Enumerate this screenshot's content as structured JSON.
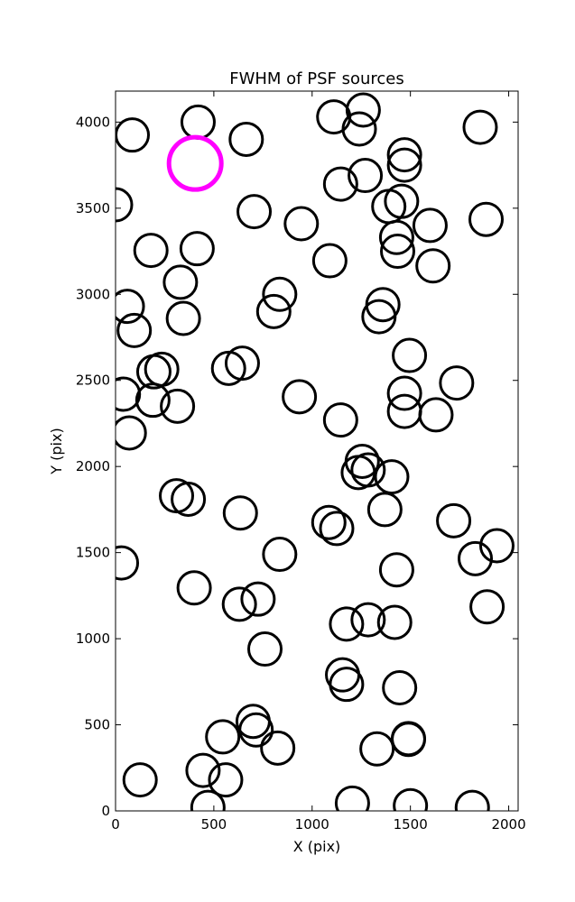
{
  "chart_data": {
    "type": "scatter",
    "title": "FWHM of PSF sources",
    "xlabel": "X (pix)",
    "ylabel": "Y (pix)",
    "xlim": [
      0,
      2048
    ],
    "ylim": [
      0,
      4180
    ],
    "xticks": [
      0,
      500,
      1000,
      1500,
      2000
    ],
    "yticks": [
      0,
      500,
      1000,
      1500,
      2000,
      2500,
      3000,
      3500,
      4000
    ],
    "marker": "open-circle",
    "grid": false,
    "legend": "none",
    "colors": {
      "source": "#000000",
      "highlight": "#ff00ff"
    },
    "highlight_point": {
      "x": 405,
      "y": 3760
    },
    "points": [
      {
        "x": 85,
        "y": 3925
      },
      {
        "x": 420,
        "y": 4000
      },
      {
        "x": 665,
        "y": 3900
      },
      {
        "x": 1110,
        "y": 4030
      },
      {
        "x": 1240,
        "y": 3960
      },
      {
        "x": 1260,
        "y": 4070
      },
      {
        "x": 1855,
        "y": 3970
      },
      {
        "x": 1470,
        "y": 3810
      },
      {
        "x": 1470,
        "y": 3750
      },
      {
        "x": 1270,
        "y": 3690
      },
      {
        "x": 1145,
        "y": 3640
      },
      {
        "x": 0,
        "y": 3520
      },
      {
        "x": 705,
        "y": 3480
      },
      {
        "x": 945,
        "y": 3410
      },
      {
        "x": 1390,
        "y": 3510
      },
      {
        "x": 1455,
        "y": 3540
      },
      {
        "x": 1600,
        "y": 3400
      },
      {
        "x": 1885,
        "y": 3435
      },
      {
        "x": 180,
        "y": 3255
      },
      {
        "x": 415,
        "y": 3265
      },
      {
        "x": 1430,
        "y": 3330
      },
      {
        "x": 1435,
        "y": 3250
      },
      {
        "x": 1090,
        "y": 3195
      },
      {
        "x": 1615,
        "y": 3165
      },
      {
        "x": 330,
        "y": 3070
      },
      {
        "x": 835,
        "y": 3000
      },
      {
        "x": 805,
        "y": 2900
      },
      {
        "x": 60,
        "y": 2930
      },
      {
        "x": 95,
        "y": 2790
      },
      {
        "x": 345,
        "y": 2860
      },
      {
        "x": 1360,
        "y": 2940
      },
      {
        "x": 1340,
        "y": 2870
      },
      {
        "x": 1495,
        "y": 2645
      },
      {
        "x": 645,
        "y": 2600
      },
      {
        "x": 575,
        "y": 2570
      },
      {
        "x": 235,
        "y": 2565
      },
      {
        "x": 195,
        "y": 2550
      },
      {
        "x": 40,
        "y": 2420
      },
      {
        "x": 190,
        "y": 2385
      },
      {
        "x": 315,
        "y": 2350
      },
      {
        "x": 935,
        "y": 2405
      },
      {
        "x": 1470,
        "y": 2425
      },
      {
        "x": 1735,
        "y": 2485
      },
      {
        "x": 1470,
        "y": 2320
      },
      {
        "x": 1630,
        "y": 2300
      },
      {
        "x": 1145,
        "y": 2270
      },
      {
        "x": 70,
        "y": 2195
      },
      {
        "x": 1255,
        "y": 2030
      },
      {
        "x": 1235,
        "y": 1965
      },
      {
        "x": 1285,
        "y": 1980
      },
      {
        "x": 1405,
        "y": 1940
      },
      {
        "x": 310,
        "y": 1830
      },
      {
        "x": 370,
        "y": 1810
      },
      {
        "x": 635,
        "y": 1730
      },
      {
        "x": 1370,
        "y": 1750
      },
      {
        "x": 1085,
        "y": 1675
      },
      {
        "x": 1125,
        "y": 1640
      },
      {
        "x": 1720,
        "y": 1685
      },
      {
        "x": 30,
        "y": 1440
      },
      {
        "x": 835,
        "y": 1490
      },
      {
        "x": 1830,
        "y": 1465
      },
      {
        "x": 1940,
        "y": 1540
      },
      {
        "x": 1430,
        "y": 1400
      },
      {
        "x": 400,
        "y": 1295
      },
      {
        "x": 630,
        "y": 1200
      },
      {
        "x": 725,
        "y": 1230
      },
      {
        "x": 1890,
        "y": 1185
      },
      {
        "x": 1175,
        "y": 1085
      },
      {
        "x": 1285,
        "y": 1110
      },
      {
        "x": 1420,
        "y": 1095
      },
      {
        "x": 760,
        "y": 940
      },
      {
        "x": 1155,
        "y": 790
      },
      {
        "x": 1175,
        "y": 735
      },
      {
        "x": 1445,
        "y": 715
      },
      {
        "x": 700,
        "y": 520
      },
      {
        "x": 715,
        "y": 470
      },
      {
        "x": 545,
        "y": 430
      },
      {
        "x": 825,
        "y": 365
      },
      {
        "x": 1330,
        "y": 360
      },
      {
        "x": 1490,
        "y": 420
      },
      {
        "x": 1490,
        "y": 415
      },
      {
        "x": 445,
        "y": 235
      },
      {
        "x": 560,
        "y": 180
      },
      {
        "x": 125,
        "y": 180
      },
      {
        "x": 470,
        "y": 20
      },
      {
        "x": 1205,
        "y": 45
      },
      {
        "x": 1500,
        "y": 30
      },
      {
        "x": 1815,
        "y": 20
      }
    ]
  }
}
